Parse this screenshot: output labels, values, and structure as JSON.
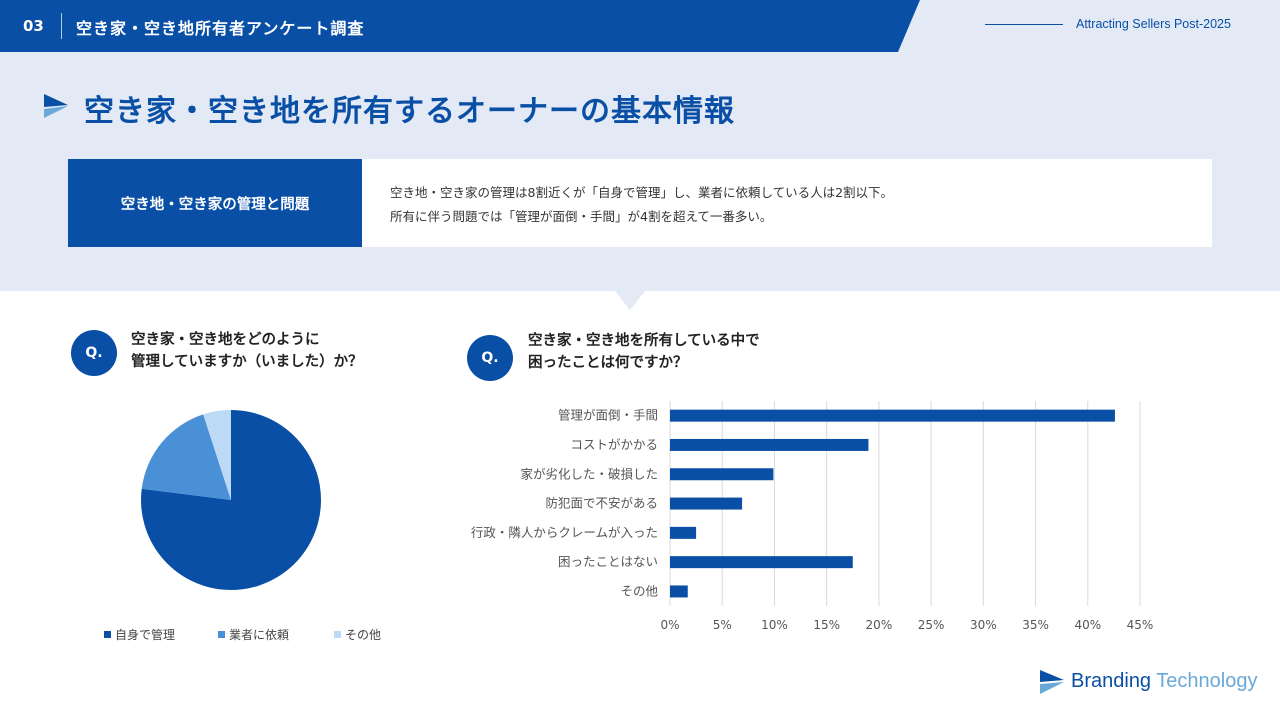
{
  "header": {
    "number": "03",
    "title": "空き家・空き地所有者アンケート調査",
    "right_text": "Attracting Sellers Post-2025"
  },
  "page_title": "空き家・空き地を所有するオーナーの基本情報",
  "summary": {
    "label": "空き地・空き家の管理と問題",
    "line1": "空き地・空き家の管理は8割近くが「自身で管理」し、業者に依頼している人は2割以下。",
    "line2": "所有に伴う問題では「管理が面倒・手間」が4割を超えて一番多い。"
  },
  "question1": {
    "badge": "Q.",
    "line1": "空き家・空き地をどのように",
    "line2": "管理していますか（いました）か？"
  },
  "question2": {
    "badge": "Q.",
    "line1": "空き家・空き地を所有している中で",
    "line2": "困ったことは何ですか？"
  },
  "colors": {
    "primary": "#0a4fa6",
    "mid": "#4a90d6",
    "light": "#bcd9f5",
    "band": "#e3eaf5"
  },
  "chart_data": [
    {
      "type": "pie",
      "slices": [
        {
          "label": "自身で管理",
          "value": 77,
          "color": "#0a4fa6"
        },
        {
          "label": "業者に依頼",
          "value": 18,
          "color": "#4a90d6"
        },
        {
          "label": "その他",
          "value": 5,
          "color": "#bcd9f5"
        }
      ]
    },
    {
      "type": "bar",
      "orientation": "horizontal",
      "categories": [
        "管理が面倒・手間",
        "コストがかかる",
        "家が劣化した・破損した",
        "防犯面で不安がある",
        "行政・隣人からクレームが入った",
        "困ったことはない",
        "その他"
      ],
      "values": [
        42.6,
        19.0,
        9.9,
        6.9,
        2.5,
        17.5,
        1.7
      ],
      "xlim": [
        0,
        45
      ],
      "xticks": [
        "0%",
        "5%",
        "10%",
        "15%",
        "20%",
        "25%",
        "30%",
        "35%",
        "40%",
        "45%"
      ],
      "grid": true,
      "color": "#0a4fa6"
    }
  ],
  "logo": {
    "word1": "Branding",
    "word2": "Technology"
  }
}
